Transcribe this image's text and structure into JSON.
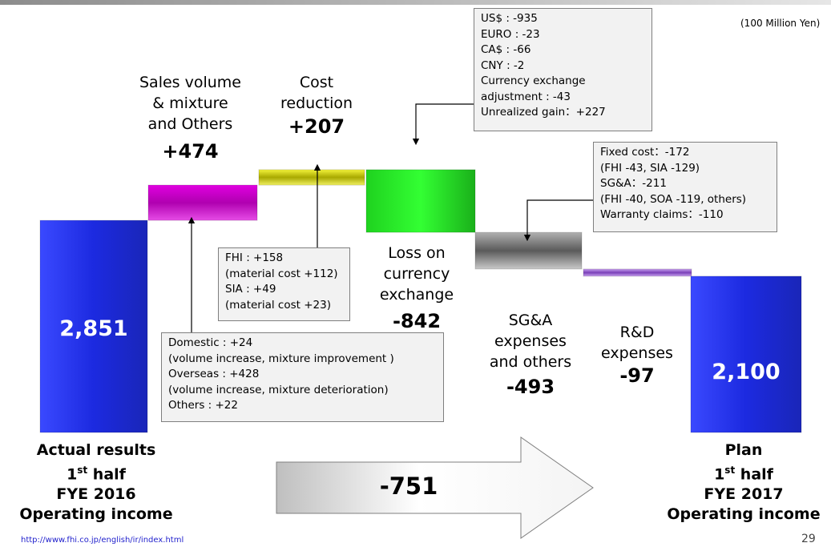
{
  "unit": "(100 Million Yen)",
  "chart_data": {
    "type": "waterfall",
    "unit": "(100 Million Yen)",
    "steps": [
      {
        "key": "start",
        "kind": "total",
        "value": 2851,
        "value_label": "2,851"
      },
      {
        "key": "sales",
        "kind": "delta",
        "value": 474,
        "value_label": "+474",
        "label_lines": [
          "Sales volume",
          "& mixture",
          "and Others"
        ]
      },
      {
        "key": "cost",
        "kind": "delta",
        "value": 207,
        "value_label": "+207",
        "label_lines": [
          "Cost",
          "reduction"
        ]
      },
      {
        "key": "fx",
        "kind": "delta",
        "value": -842,
        "value_label": "-842",
        "label_lines": [
          "Loss on",
          "currency",
          "exchange"
        ]
      },
      {
        "key": "sga",
        "kind": "delta",
        "value": -493,
        "value_label": "-493",
        "label_lines": [
          "SG&A",
          "expenses",
          "and others"
        ]
      },
      {
        "key": "rd",
        "kind": "delta",
        "value": -97,
        "value_label": "-97",
        "label_lines": [
          "R&D",
          "expenses"
        ]
      },
      {
        "key": "end",
        "kind": "total",
        "value": 2100,
        "value_label": "2,100"
      }
    ],
    "colors": {
      "start": "#1f2ee6",
      "sales": "#cc00cc",
      "cost": "#e0e000",
      "fx": "#19d119",
      "sga": "#8a8a8a",
      "rd": "#a070d8",
      "end": "#1f2ee6"
    },
    "change_label": "-751"
  },
  "captions": {
    "left": {
      "line1": "Actual results",
      "line2_main": "1",
      "line2_sup": "st",
      "line2_rest": " half",
      "line3": "FYE 2016",
      "line4": "Operating income"
    },
    "right": {
      "line1": "Plan",
      "line2_main": "1",
      "line2_sup": "st",
      "line2_rest": " half",
      "line3": "FYE 2017",
      "line4": "Operating income"
    }
  },
  "notes": {
    "currency": [
      "US$ : -935",
      "EURO : -23",
      "CA$ : -66",
      "CNY : -2",
      "Currency exchange",
      "adjustment : -43",
      "Unrealized gain：+227"
    ],
    "fixed": [
      "Fixed cost：-172",
      "(FHI -43, SIA -129)",
      "SG&A：-211",
      "(FHI -40, SOA -119, others)",
      "Warranty claims：-110"
    ],
    "fhi": [
      "FHI : +158",
      "(material cost +112)",
      "SIA : +49",
      "(material cost +23)"
    ],
    "domestic": [
      "Domestic : +24",
      " (volume increase, mixture improvement )",
      "Overseas : +428",
      " (volume increase, mixture deterioration)",
      "Others : +22"
    ]
  },
  "footer": {
    "url": "http://www.fhi.co.jp/english/ir/index.html",
    "page": "29"
  }
}
